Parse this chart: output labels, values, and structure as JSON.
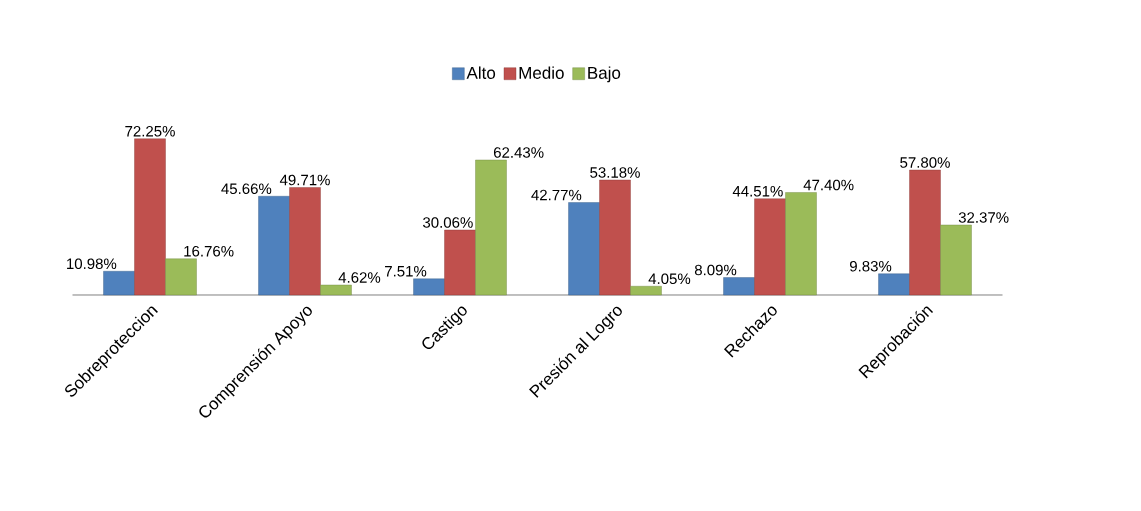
{
  "chart_data": {
    "type": "bar",
    "categories": [
      "Sobreproteccion",
      "Comprensión Apoyo",
      "Castigo",
      "Presión al Logro",
      "Rechazo",
      "Reprobación"
    ],
    "series": [
      {
        "name": "Alto",
        "color": "#4f81bd",
        "values": [
          10.98,
          45.66,
          7.51,
          42.77,
          8.09,
          9.83
        ],
        "value_labels": [
          "10.98%",
          "45.66%",
          "7.51%",
          "42.77%",
          "8.09%",
          "9.83%"
        ]
      },
      {
        "name": "Medio",
        "color": "#c0504d",
        "values": [
          72.25,
          49.71,
          30.06,
          53.18,
          44.51,
          57.8
        ],
        "value_labels": [
          "72.25%",
          "49.71%",
          "30.06%",
          "53.18%",
          "44.51%",
          "57.80%"
        ]
      },
      {
        "name": "Bajo",
        "color": "#9bbb59",
        "values": [
          16.76,
          4.62,
          62.43,
          4.05,
          47.4,
          32.37
        ],
        "value_labels": [
          "16.76%",
          "4.62%",
          "62.43%",
          "4.05%",
          "47.40%",
          "32.37%"
        ]
      }
    ],
    "legend": "top"
  }
}
